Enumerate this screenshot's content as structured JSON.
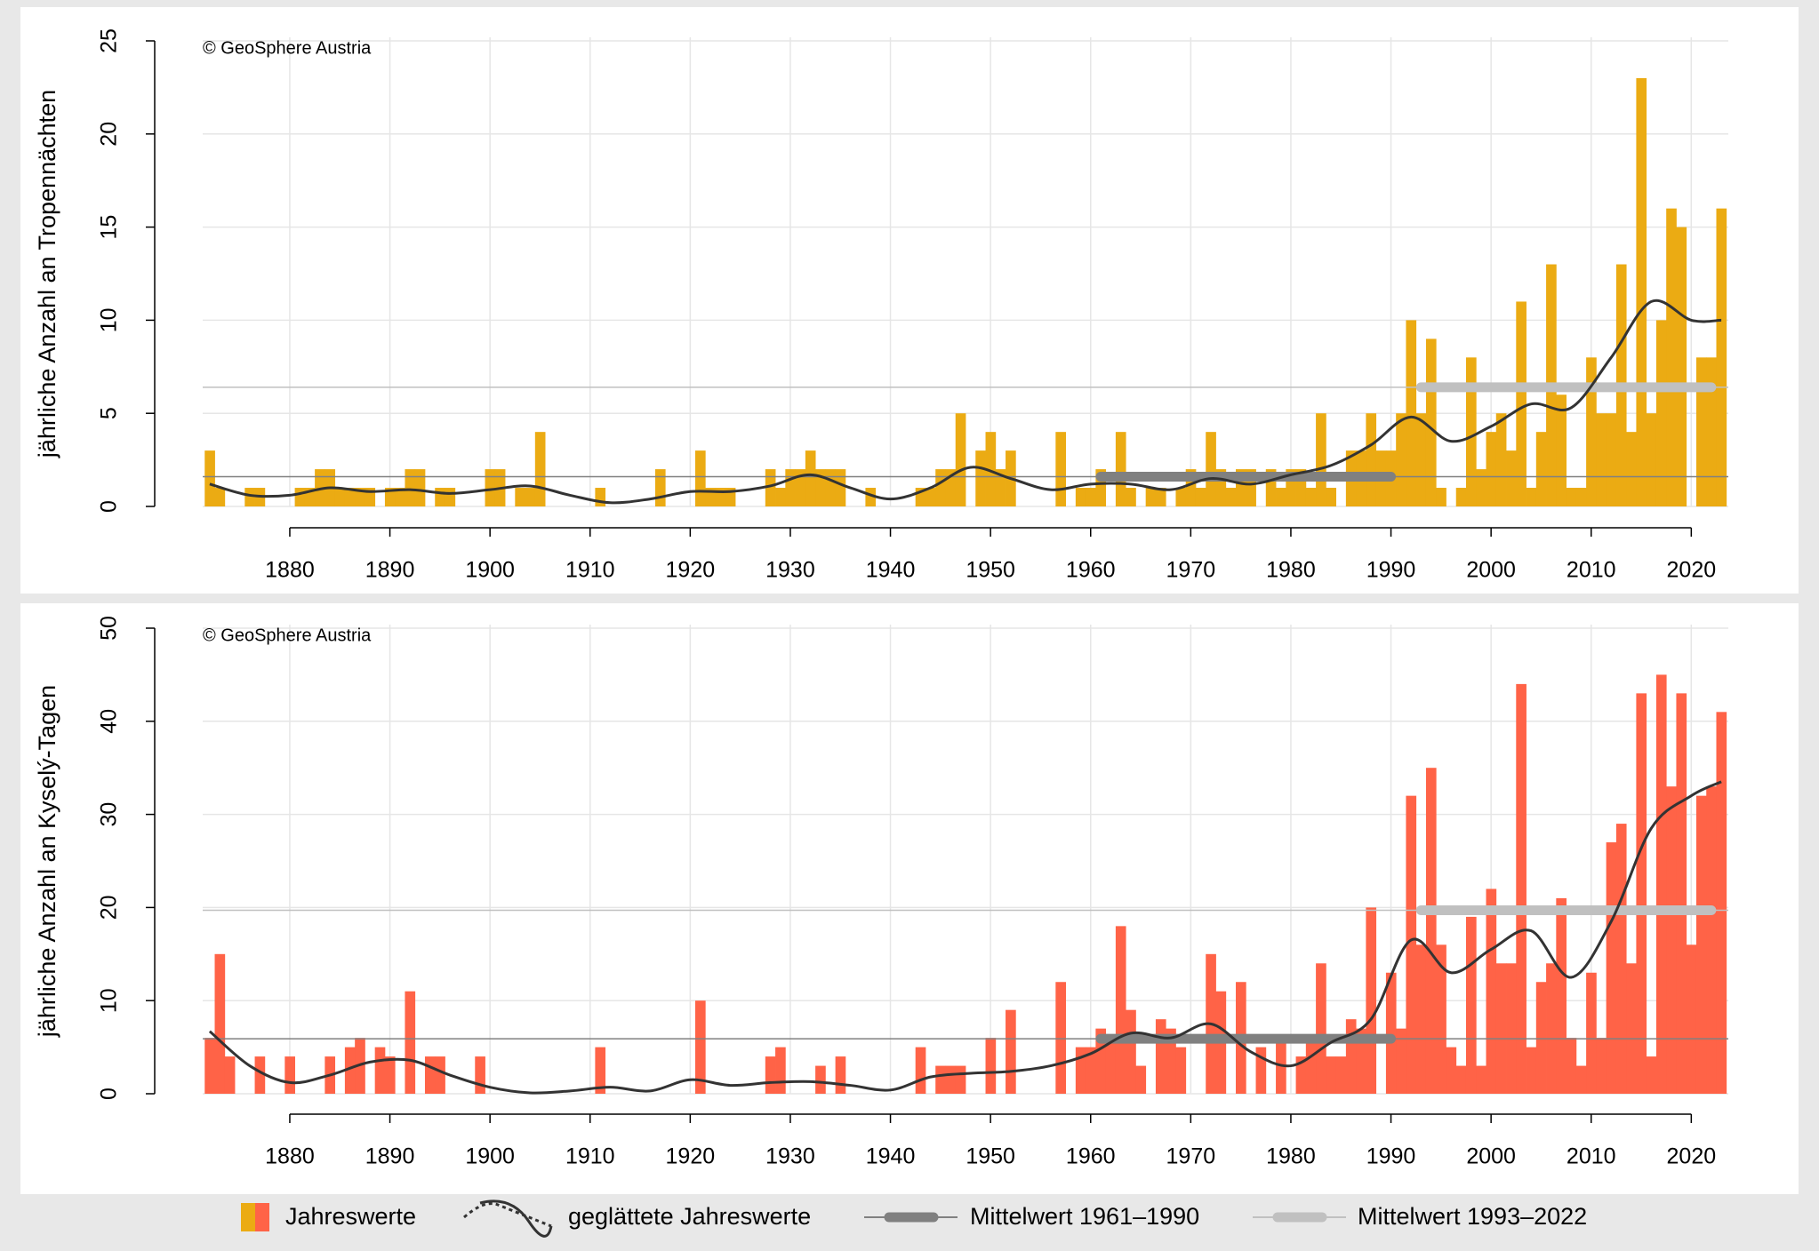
{
  "chart_data": [
    {
      "type": "bar",
      "annotation": "© GeoSphere Austria",
      "y_label": "jährliche Anzahl an Tropennächten",
      "xlim": [
        1871.3,
        2023.7
      ],
      "xticks": [
        1880,
        1890,
        1900,
        1910,
        1920,
        1930,
        1940,
        1950,
        1960,
        1970,
        1980,
        1990,
        2000,
        2010,
        2020
      ],
      "ylim": [
        0,
        25
      ],
      "yticks": [
        0,
        5,
        10,
        15,
        20,
        25
      ],
      "grid": true,
      "series": [
        {
          "type": "bar",
          "name": "Jahreswerte",
          "color": "#ebab13",
          "x": [
            1872,
            1873,
            1874,
            1875,
            1876,
            1877,
            1878,
            1879,
            1880,
            1881,
            1882,
            1883,
            1884,
            1885,
            1886,
            1887,
            1888,
            1889,
            1890,
            1891,
            1892,
            1893,
            1894,
            1895,
            1896,
            1897,
            1898,
            1899,
            1900,
            1901,
            1902,
            1903,
            1904,
            1905,
            1906,
            1907,
            1908,
            1909,
            1910,
            1911,
            1912,
            1913,
            1914,
            1915,
            1916,
            1917,
            1918,
            1919,
            1920,
            1921,
            1922,
            1923,
            1924,
            1925,
            1926,
            1927,
            1928,
            1929,
            1930,
            1931,
            1932,
            1933,
            1934,
            1935,
            1936,
            1937,
            1938,
            1939,
            1940,
            1941,
            1942,
            1943,
            1944,
            1945,
            1946,
            1947,
            1948,
            1949,
            1950,
            1951,
            1952,
            1953,
            1954,
            1955,
            1956,
            1957,
            1958,
            1959,
            1960,
            1961,
            1962,
            1963,
            1964,
            1965,
            1966,
            1967,
            1968,
            1969,
            1970,
            1971,
            1972,
            1973,
            1974,
            1975,
            1976,
            1977,
            1978,
            1979,
            1980,
            1981,
            1982,
            1983,
            1984,
            1985,
            1986,
            1987,
            1988,
            1989,
            1990,
            1991,
            1992,
            1993,
            1994,
            1995,
            1996,
            1997,
            1998,
            1999,
            2000,
            2001,
            2002,
            2003,
            2004,
            2005,
            2006,
            2007,
            2008,
            2009,
            2010,
            2011,
            2012,
            2013,
            2014,
            2015,
            2016,
            2017,
            2018,
            2019,
            2020,
            2021,
            2022,
            2023
          ],
          "values": [
            3,
            1,
            0,
            0,
            1,
            1,
            0,
            0,
            0,
            1,
            1,
            2,
            2,
            1,
            1,
            1,
            1,
            0,
            1,
            1,
            2,
            2,
            0,
            1,
            1,
            0,
            0,
            0,
            2,
            2,
            0,
            1,
            1,
            4,
            0,
            0,
            0,
            0,
            0,
            1,
            0,
            0,
            0,
            0,
            0,
            2,
            0,
            0,
            0,
            3,
            1,
            1,
            1,
            0,
            0,
            0,
            2,
            1,
            2,
            2,
            3,
            2,
            2,
            2,
            0,
            0,
            1,
            0,
            0,
            0,
            0,
            1,
            1,
            2,
            2,
            5,
            0,
            3,
            4,
            2,
            3,
            0,
            0,
            0,
            0,
            4,
            0,
            1,
            1,
            2,
            0,
            4,
            1,
            0,
            1,
            1,
            0,
            1,
            2,
            1,
            4,
            2,
            1,
            2,
            2,
            0,
            2,
            1,
            2,
            2,
            1,
            5,
            1,
            0,
            3,
            3,
            5,
            3,
            3,
            5,
            10,
            5,
            9,
            1,
            0,
            1,
            8,
            2,
            4,
            5,
            3,
            11,
            1,
            4,
            13,
            6,
            1,
            1,
            8,
            5,
            5,
            13,
            4,
            23,
            5,
            10,
            16,
            15,
            0,
            8,
            8,
            16
          ]
        },
        {
          "type": "line",
          "name": "geglättete Jahreswerte",
          "color": "#333333",
          "x": [
            1872,
            1876,
            1880,
            1884,
            1888,
            1892,
            1896,
            1900,
            1904,
            1908,
            1912,
            1916,
            1920,
            1924,
            1928,
            1932,
            1936,
            1940,
            1944,
            1948,
            1952,
            1956,
            1960,
            1964,
            1968,
            1972,
            1976,
            1980,
            1984,
            1988,
            1992,
            1996,
            2000,
            2004,
            2008,
            2012,
            2016,
            2020,
            2023
          ],
          "values": [
            1.2,
            0.6,
            0.6,
            1.0,
            0.8,
            0.9,
            0.7,
            0.9,
            1.1,
            0.6,
            0.2,
            0.4,
            0.8,
            0.8,
            1.1,
            1.7,
            1.0,
            0.4,
            1.0,
            2.1,
            1.5,
            0.9,
            1.2,
            1.2,
            0.9,
            1.5,
            1.2,
            1.7,
            2.2,
            3.3,
            4.8,
            3.5,
            4.3,
            5.5,
            5.3,
            8.0,
            11.0,
            10.0,
            10.0
          ]
        },
        {
          "type": "mean",
          "name": "Mittelwert 1961–1990",
          "color": "#808080",
          "period": [
            1961,
            1990
          ],
          "value": 1.6
        },
        {
          "type": "mean",
          "name": "Mittelwert 1993–2022",
          "color": "#c0c0c0",
          "period": [
            1993,
            2022
          ],
          "value": 6.4
        }
      ]
    },
    {
      "type": "bar",
      "annotation": "© GeoSphere Austria",
      "y_label": "jährliche Anzahl an Kyselý-Tagen",
      "xlim": [
        1871.3,
        2023.7
      ],
      "xticks": [
        1880,
        1890,
        1900,
        1910,
        1920,
        1930,
        1940,
        1950,
        1960,
        1970,
        1980,
        1990,
        2000,
        2010,
        2020
      ],
      "ylim": [
        0,
        50
      ],
      "yticks": [
        0,
        10,
        20,
        30,
        40,
        50
      ],
      "grid": true,
      "series": [
        {
          "type": "bar",
          "name": "Jahreswerte",
          "color": "#ff6347",
          "x": [
            1872,
            1873,
            1874,
            1875,
            1876,
            1877,
            1878,
            1879,
            1880,
            1881,
            1882,
            1883,
            1884,
            1885,
            1886,
            1887,
            1888,
            1889,
            1890,
            1891,
            1892,
            1893,
            1894,
            1895,
            1896,
            1897,
            1898,
            1899,
            1900,
            1901,
            1902,
            1903,
            1904,
            1905,
            1906,
            1907,
            1908,
            1909,
            1910,
            1911,
            1912,
            1913,
            1914,
            1915,
            1916,
            1917,
            1918,
            1919,
            1920,
            1921,
            1922,
            1923,
            1924,
            1925,
            1926,
            1927,
            1928,
            1929,
            1930,
            1931,
            1932,
            1933,
            1934,
            1935,
            1936,
            1937,
            1938,
            1939,
            1940,
            1941,
            1942,
            1943,
            1944,
            1945,
            1946,
            1947,
            1948,
            1949,
            1950,
            1951,
            1952,
            1953,
            1954,
            1955,
            1956,
            1957,
            1958,
            1959,
            1960,
            1961,
            1962,
            1963,
            1964,
            1965,
            1966,
            1967,
            1968,
            1969,
            1970,
            1971,
            1972,
            1973,
            1974,
            1975,
            1976,
            1977,
            1978,
            1979,
            1980,
            1981,
            1982,
            1983,
            1984,
            1985,
            1986,
            1987,
            1988,
            1989,
            1990,
            1991,
            1992,
            1993,
            1994,
            1995,
            1996,
            1997,
            1998,
            1999,
            2000,
            2001,
            2002,
            2003,
            2004,
            2005,
            2006,
            2007,
            2008,
            2009,
            2010,
            2011,
            2012,
            2013,
            2014,
            2015,
            2016,
            2017,
            2018,
            2019,
            2020,
            2021,
            2022,
            2023
          ],
          "values": [
            6,
            15,
            4,
            0,
            0,
            4,
            0,
            0,
            4,
            0,
            0,
            0,
            4,
            0,
            5,
            6,
            0,
            5,
            4,
            0,
            11,
            0,
            4,
            4,
            0,
            0,
            0,
            4,
            0,
            0,
            0,
            0,
            0,
            0,
            0,
            0,
            0,
            0,
            0,
            5,
            0,
            0,
            0,
            0,
            0,
            0,
            0,
            0,
            0,
            10,
            0,
            0,
            0,
            0,
            0,
            0,
            4,
            5,
            0,
            0,
            0,
            3,
            0,
            4,
            0,
            0,
            0,
            0,
            0,
            0,
            0,
            5,
            0,
            3,
            3,
            3,
            0,
            0,
            6,
            0,
            9,
            0,
            0,
            0,
            0,
            12,
            0,
            5,
            5,
            7,
            6,
            18,
            9,
            3,
            0,
            8,
            7,
            5,
            0,
            0,
            15,
            11,
            0,
            12,
            0,
            5,
            0,
            6,
            0,
            4,
            6,
            14,
            4,
            4,
            8,
            7,
            20,
            0,
            13,
            7,
            32,
            16,
            35,
            16,
            5,
            3,
            19,
            3,
            22,
            14,
            14,
            44,
            5,
            12,
            14,
            21,
            6,
            3,
            13,
            6,
            27,
            29,
            14,
            43,
            4,
            45,
            33,
            43,
            16,
            32,
            33,
            41
          ]
        },
        {
          "type": "line",
          "name": "geglättete Jahreswerte",
          "color": "#333333",
          "x": [
            1872,
            1876,
            1880,
            1884,
            1888,
            1892,
            1896,
            1900,
            1904,
            1908,
            1912,
            1916,
            1920,
            1924,
            1928,
            1932,
            1936,
            1940,
            1944,
            1948,
            1952,
            1956,
            1960,
            1964,
            1968,
            1972,
            1976,
            1980,
            1984,
            1988,
            1992,
            1996,
            2000,
            2004,
            2008,
            2012,
            2016,
            2020,
            2023
          ],
          "values": [
            6.7,
            3.0,
            1.2,
            2.0,
            3.4,
            3.6,
            2.0,
            0.7,
            0.1,
            0.3,
            0.7,
            0.3,
            1.5,
            0.9,
            1.2,
            1.3,
            0.9,
            0.4,
            1.8,
            2.2,
            2.4,
            3.0,
            4.3,
            6.5,
            6.0,
            7.5,
            4.5,
            3.0,
            5.5,
            8.0,
            16.5,
            13.0,
            15.5,
            17.5,
            12.5,
            18.5,
            28.5,
            32.0,
            33.5
          ]
        },
        {
          "type": "mean",
          "name": "Mittelwert 1961–1990",
          "color": "#808080",
          "period": [
            1961,
            1990
          ],
          "value": 5.9
        },
        {
          "type": "mean",
          "name": "Mittelwert 1993–2022",
          "color": "#c0c0c0",
          "period": [
            1993,
            2022
          ],
          "value": 19.7
        }
      ]
    }
  ]
}
